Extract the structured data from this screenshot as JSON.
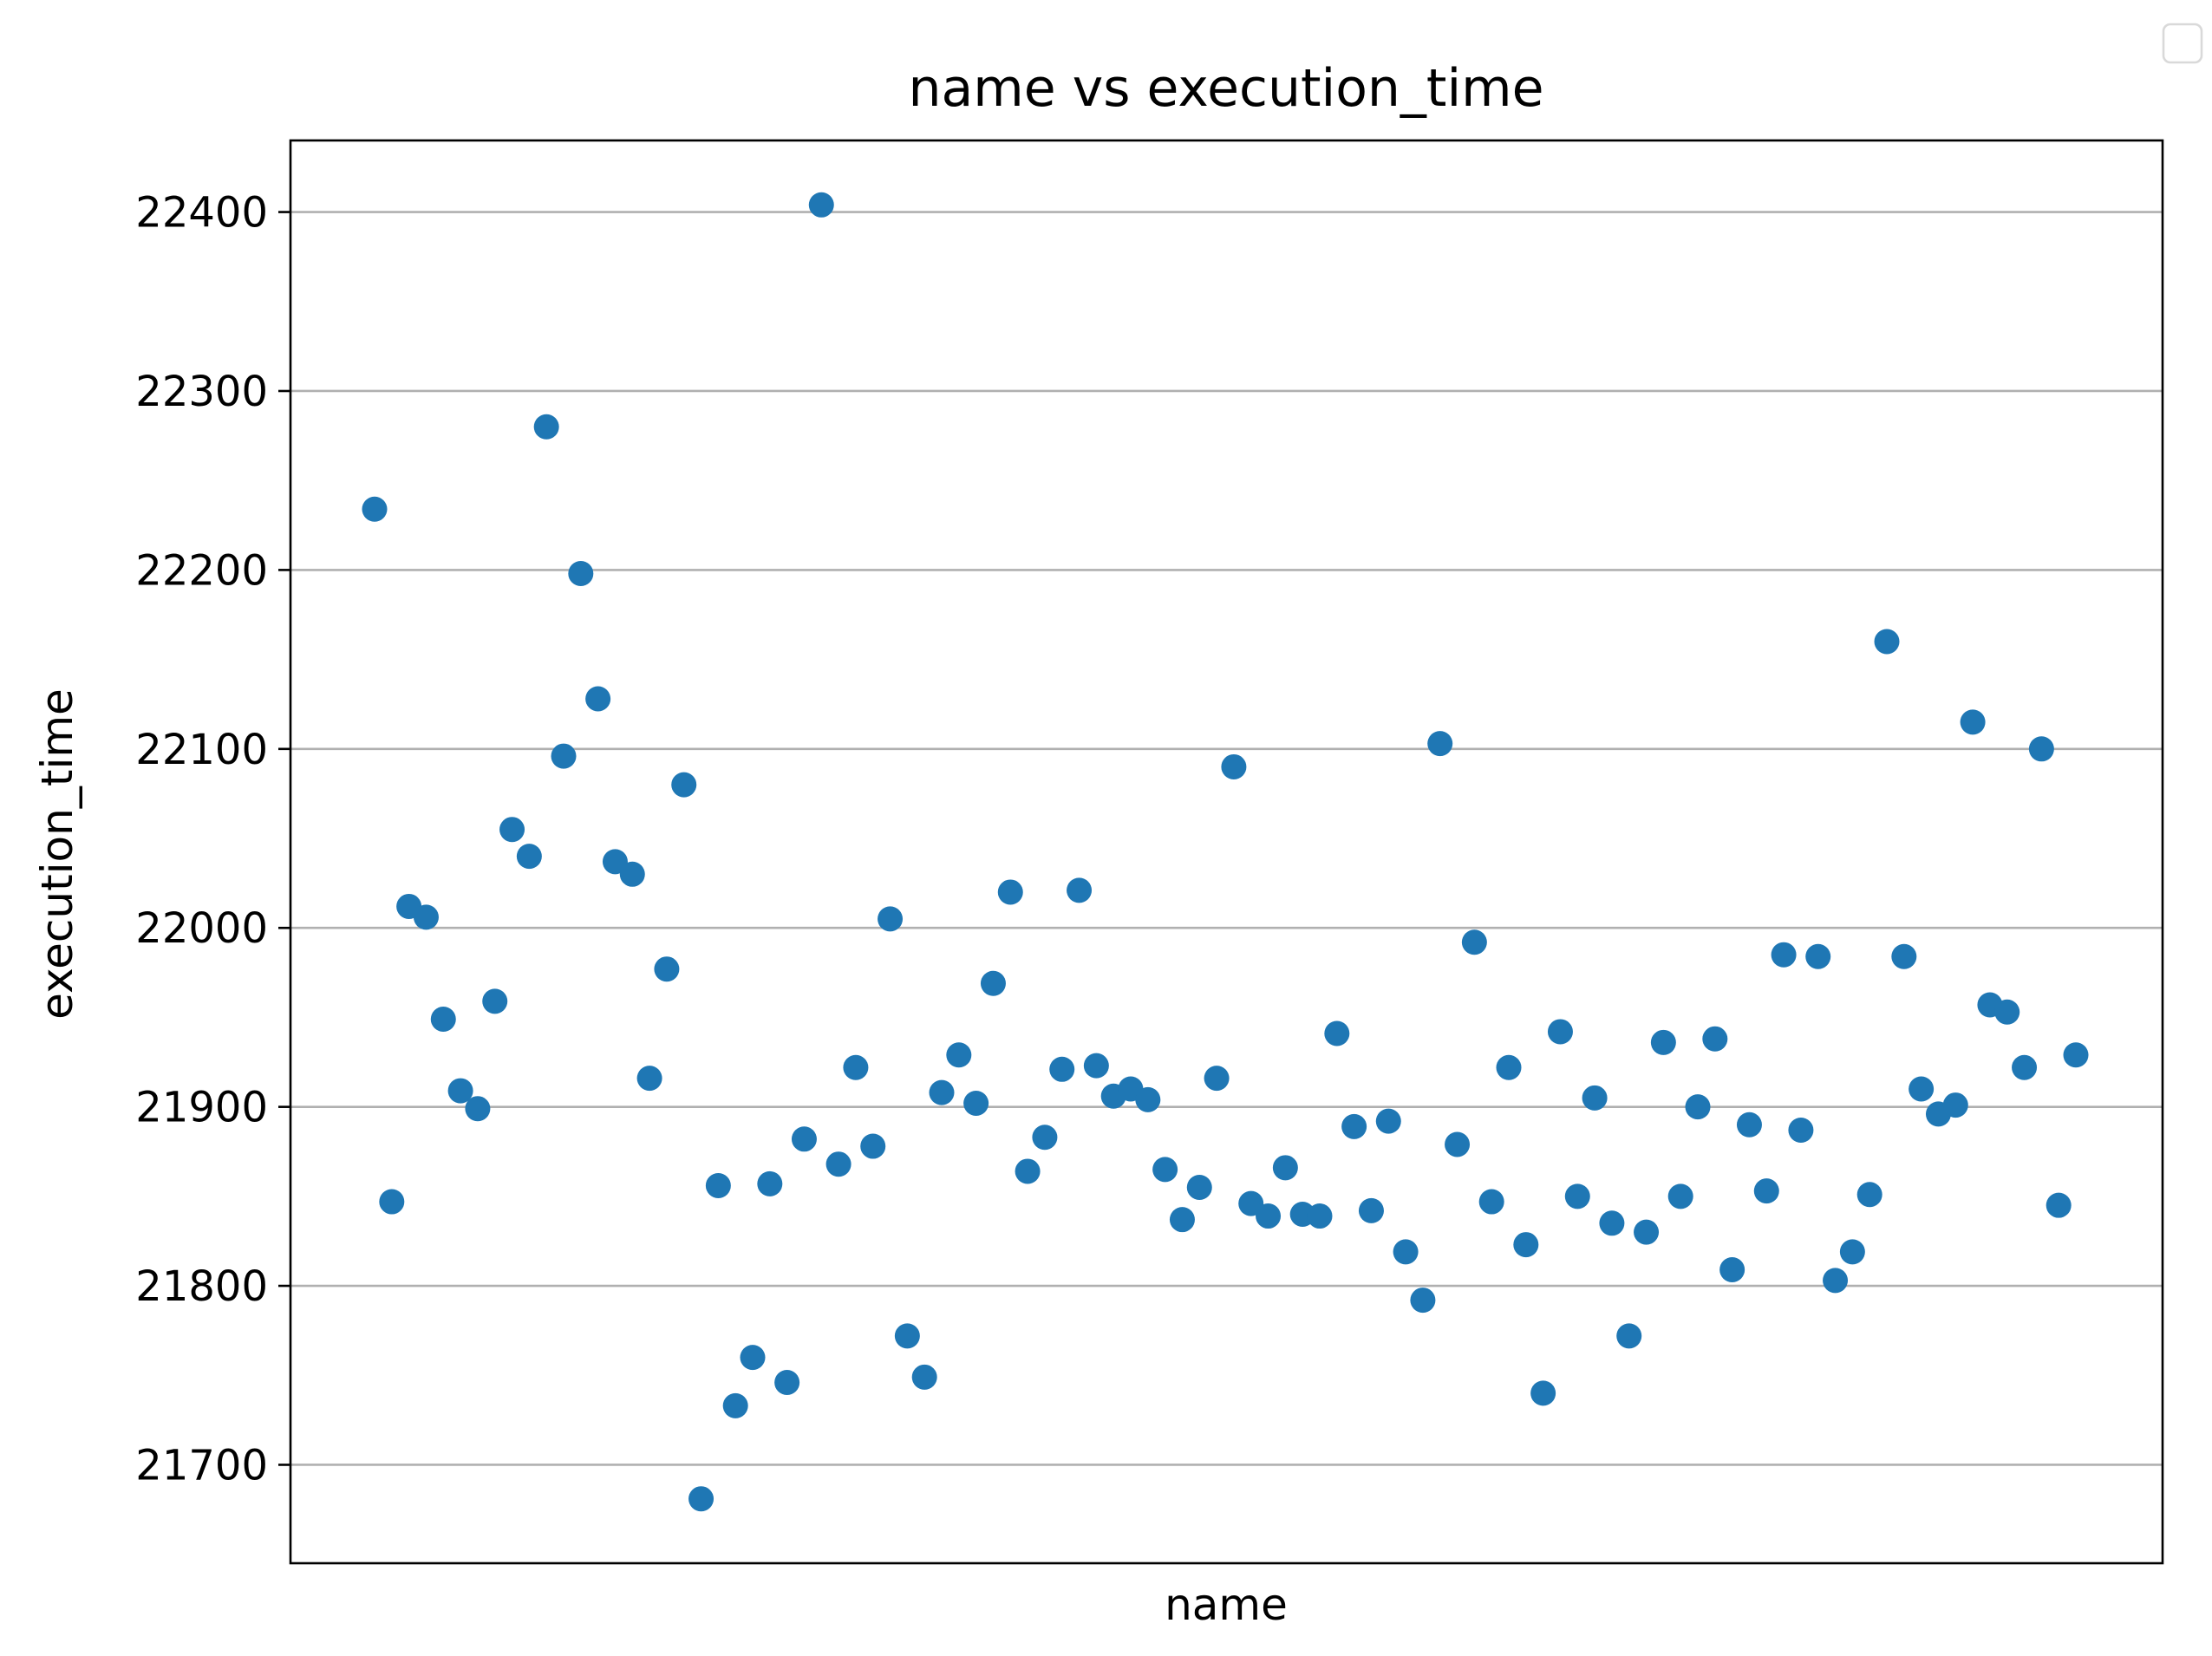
{
  "chart_data": {
    "type": "scatter",
    "title": "name vs execution_time",
    "xlabel": "name",
    "ylabel": "execution_time",
    "ylim": [
      21645,
      22440
    ],
    "yticks": [
      21700,
      21800,
      21900,
      22000,
      22100,
      22200,
      22300,
      22400
    ],
    "grid": "y-axis",
    "legend": "top-right (empty)",
    "color": "#1f77b4",
    "x_categorical_unlabeled": true,
    "series": [
      {
        "values": [
          22234,
          21847,
          22012,
          22006,
          21949,
          21909,
          21899,
          21959,
          22055,
          22040,
          22280,
          22096,
          22198,
          22128,
          22037,
          22030,
          21916,
          21977,
          22080,
          21681,
          21856,
          21733,
          21760,
          21857,
          21746,
          21882,
          22404,
          21868,
          21922,
          21878,
          22005,
          21772,
          21749,
          21908,
          21929,
          21902,
          21969,
          22020,
          21864,
          21883,
          21921,
          22021,
          21923,
          21906,
          21910,
          21904,
          21865,
          21837,
          21855,
          21916,
          22090,
          21846,
          21839,
          21866,
          21840,
          21839,
          21941,
          21889,
          21842,
          21892,
          21819,
          21792,
          22103,
          21879,
          21992,
          21847,
          21922,
          21823,
          21740,
          21942,
          21850,
          21905,
          21835,
          21772,
          21830,
          21936,
          21850,
          21900,
          21938,
          21809,
          21890,
          21853,
          21985,
          21887,
          21984,
          21803,
          21819,
          21851,
          22160,
          21984,
          21910,
          21896,
          21901,
          22115,
          21957,
          21953,
          21922,
          22100,
          21845,
          21929
        ]
      }
    ]
  }
}
